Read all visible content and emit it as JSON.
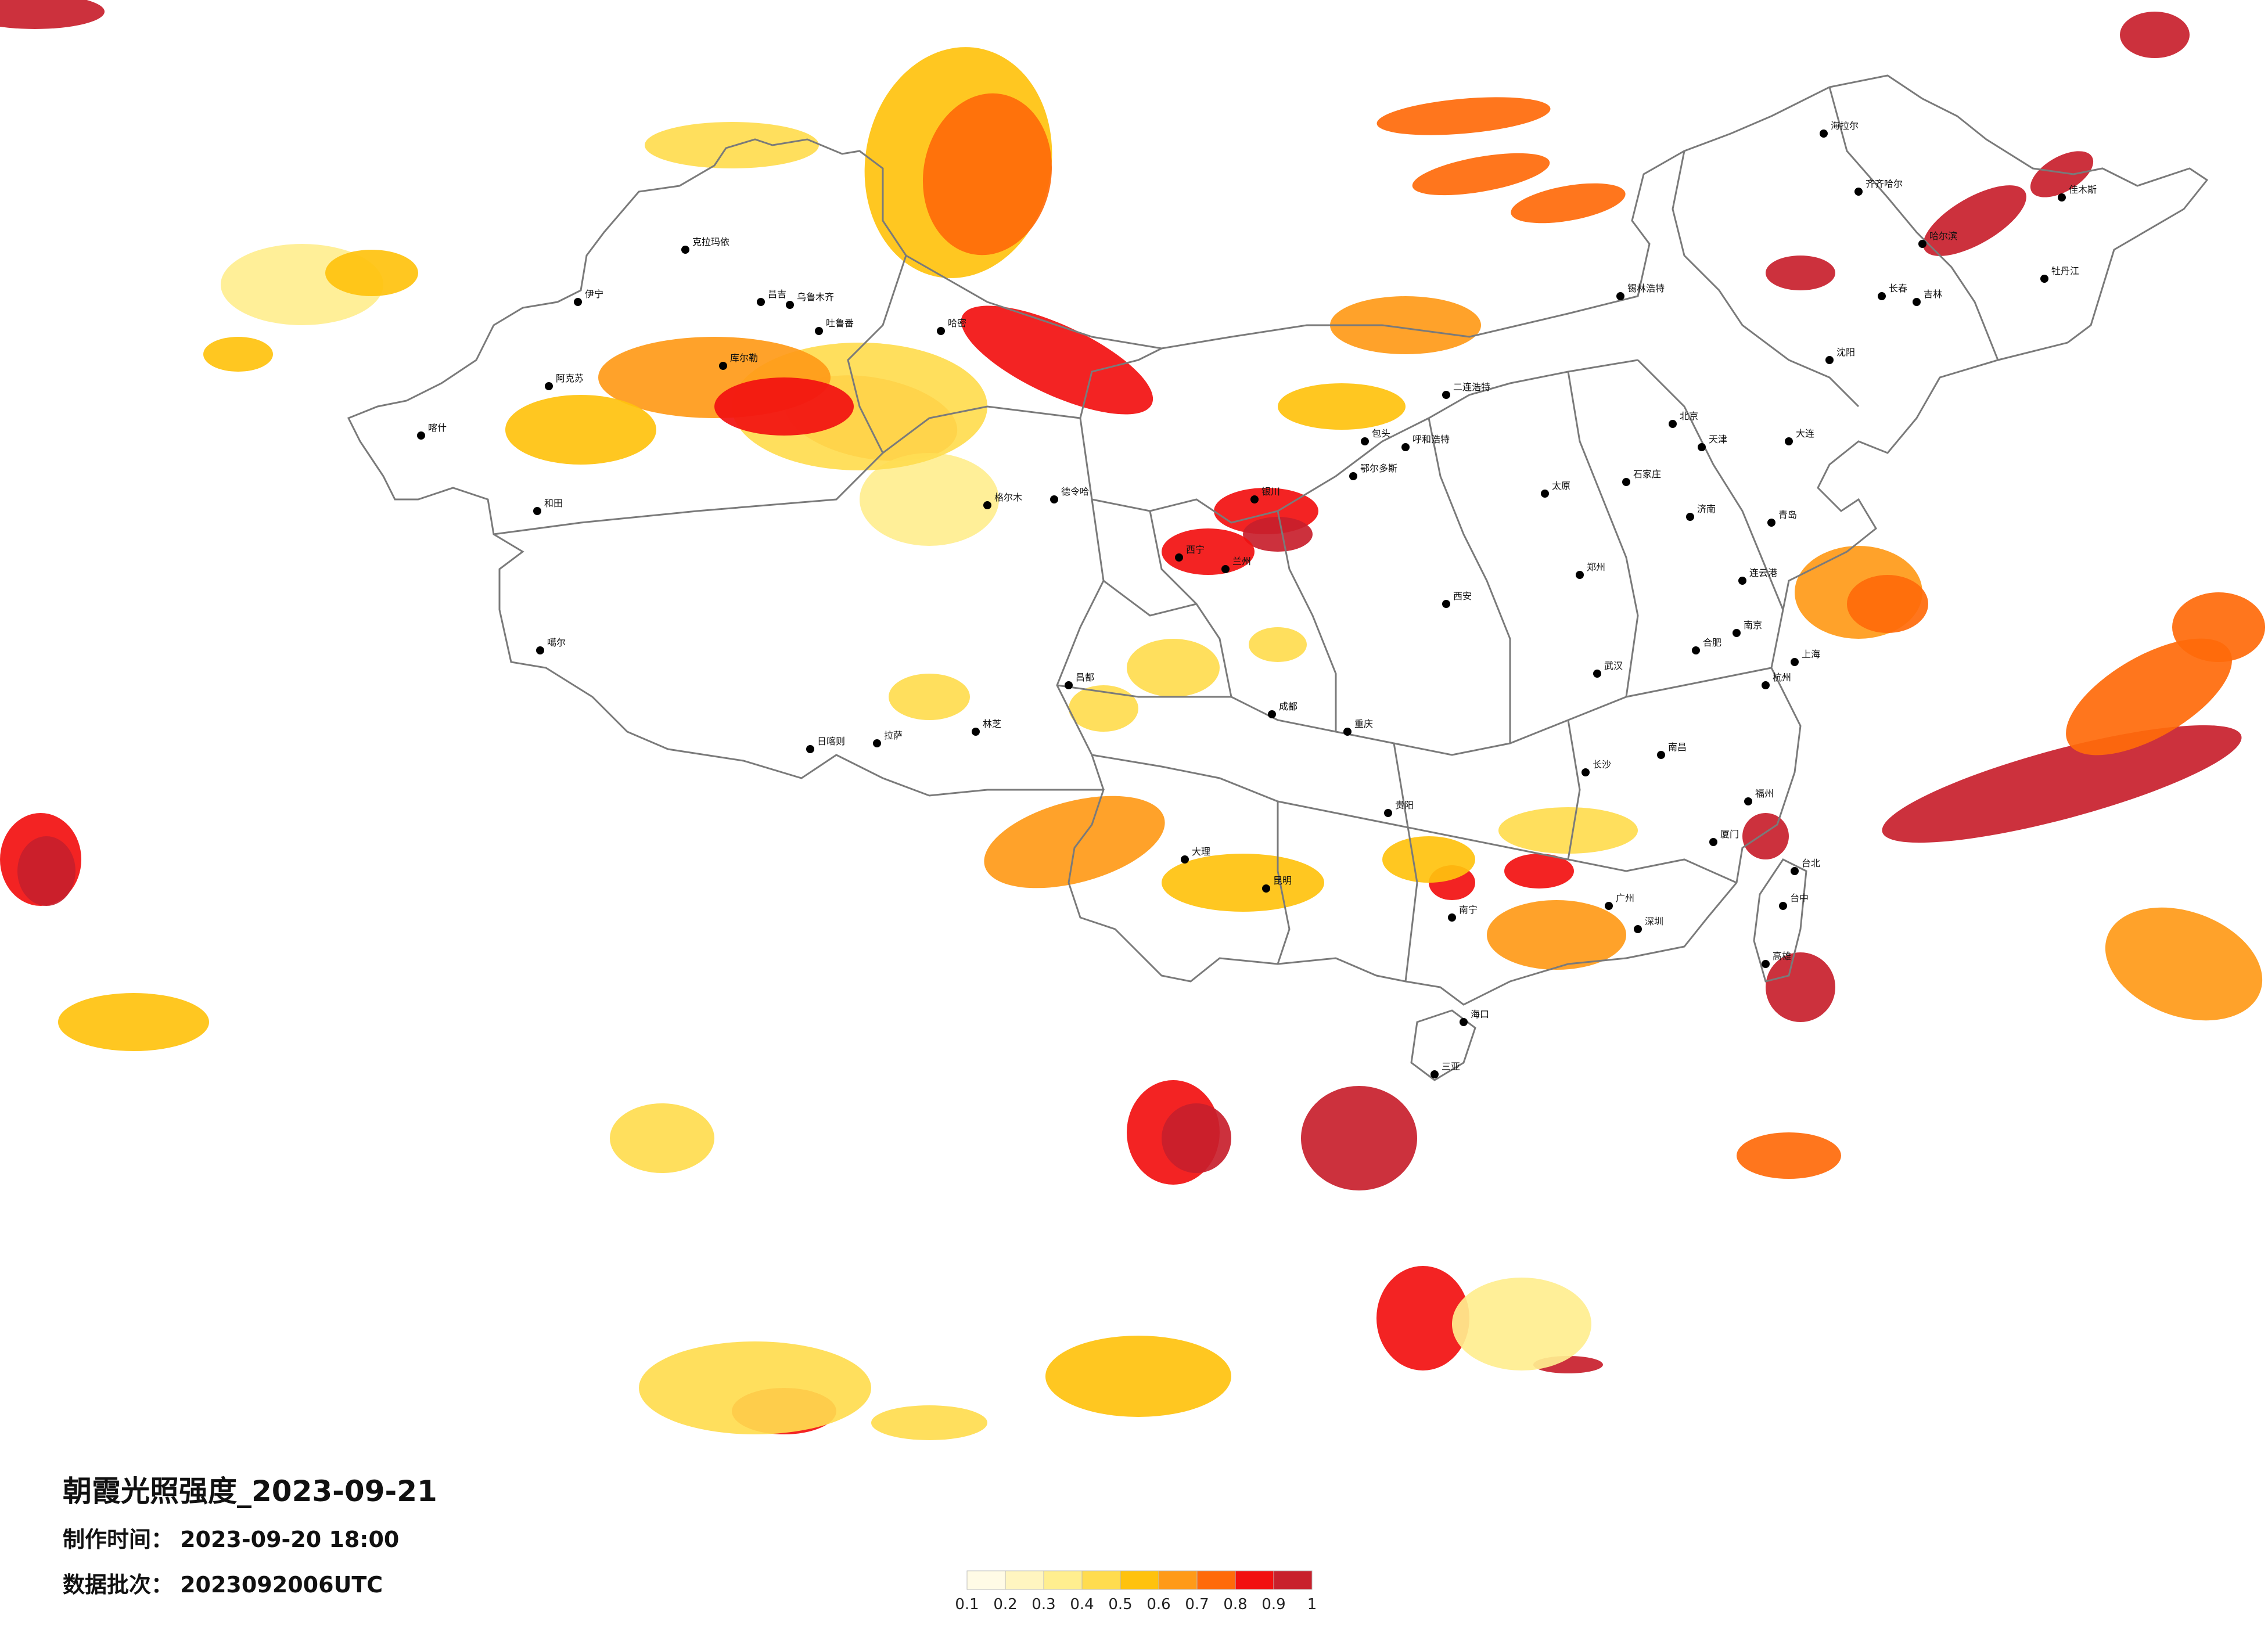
{
  "title": "朝霞光照强度_2023-09-21",
  "made_time": {
    "label": "制作时间：",
    "value": "2023-09-20 18:00"
  },
  "batch": {
    "label": "数据批次：",
    "value": "2023092006UTC"
  },
  "legend": {
    "ticks": [
      "0.1",
      "0.2",
      "0.3",
      "0.4",
      "0.5",
      "0.6",
      "0.7",
      "0.8",
      "0.9",
      "1"
    ],
    "colors": [
      "#fffbe6",
      "#fff5c0",
      "#ffee8f",
      "#ffdc4f",
      "#ffc20e",
      "#ff9a18",
      "#ff6a0a",
      "#f21010",
      "#c8202c"
    ]
  },
  "colors": {
    "boundary": "#7a7a7a",
    "city_dot": "#000000",
    "background": "#ffffff"
  },
  "cities": [
    {
      "name": "克拉玛依"
    },
    {
      "name": "伊宁"
    },
    {
      "name": "阿克苏"
    },
    {
      "name": "喀什"
    },
    {
      "name": "和田"
    },
    {
      "name": "库尔勒"
    },
    {
      "name": "昌吉"
    },
    {
      "name": "乌鲁木齐"
    },
    {
      "name": "吐鲁番"
    },
    {
      "name": "哈密"
    },
    {
      "name": "德令哈"
    },
    {
      "name": "格尔木"
    },
    {
      "name": "噶尔"
    },
    {
      "name": "日喀则"
    },
    {
      "name": "拉萨"
    },
    {
      "name": "林芝"
    },
    {
      "name": "昌都"
    },
    {
      "name": "西宁"
    },
    {
      "name": "兰州"
    },
    {
      "name": "银川"
    },
    {
      "name": "呼和浩特"
    },
    {
      "name": "包头"
    },
    {
      "name": "鄂尔多斯"
    },
    {
      "name": "二连浩特"
    },
    {
      "name": "锡林浩特"
    },
    {
      "name": "海拉尔"
    },
    {
      "name": "齐齐哈尔"
    },
    {
      "name": "哈尔滨"
    },
    {
      "name": "佳木斯"
    },
    {
      "name": "牡丹江"
    },
    {
      "name": "长春"
    },
    {
      "name": "吉林"
    },
    {
      "name": "沈阳"
    },
    {
      "name": "大连"
    },
    {
      "name": "北京"
    },
    {
      "name": "天津"
    },
    {
      "name": "石家庄"
    },
    {
      "name": "太原"
    },
    {
      "name": "济南"
    },
    {
      "name": "青岛"
    },
    {
      "name": "郑州"
    },
    {
      "name": "西安"
    },
    {
      "name": "武汉"
    },
    {
      "name": "南京"
    },
    {
      "name": "合肥"
    },
    {
      "name": "上海"
    },
    {
      "name": "杭州"
    },
    {
      "name": "南昌"
    },
    {
      "name": "长沙"
    },
    {
      "name": "福州"
    },
    {
      "name": "厦门"
    },
    {
      "name": "广州"
    },
    {
      "name": "深圳"
    },
    {
      "name": "南宁"
    },
    {
      "name": "海口"
    },
    {
      "name": "三亚"
    },
    {
      "name": "贵阳"
    },
    {
      "name": "昆明"
    },
    {
      "name": "成都"
    },
    {
      "name": "重庆"
    },
    {
      "name": "台北"
    },
    {
      "name": "台中"
    },
    {
      "name": "高雄"
    },
    {
      "name": "连云港"
    },
    {
      "name": "大理"
    }
  ]
}
